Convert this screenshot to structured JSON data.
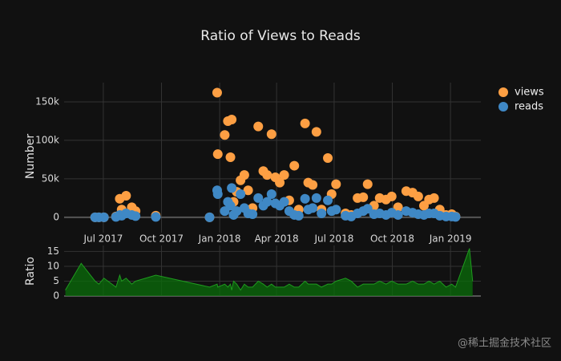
{
  "chart_data": [
    {
      "type": "scatter",
      "title": "Ratio of Views to Reads",
      "ylabel": "Number",
      "x": [
        "2017-05-02",
        "2017-05-27",
        "2017-06-18",
        "2017-06-24",
        "2017-07-02",
        "2017-07-21",
        "2017-07-27",
        "2017-07-30",
        "2017-08-06",
        "2017-08-15",
        "2017-08-21",
        "2017-09-22",
        "2017-12-16",
        "2017-12-28",
        "2017-12-29",
        "2018-01-09",
        "2018-01-14",
        "2018-01-18",
        "2018-01-20",
        "2018-01-23",
        "2018-01-28",
        "2018-02-03",
        "2018-02-09",
        "2018-02-15",
        "2018-02-22",
        "2018-03-03",
        "2018-03-11",
        "2018-03-17",
        "2018-03-24",
        "2018-03-30",
        "2018-04-06",
        "2018-04-13",
        "2018-04-21",
        "2018-04-29",
        "2018-05-06",
        "2018-05-16",
        "2018-05-21",
        "2018-05-28",
        "2018-06-03",
        "2018-06-11",
        "2018-06-21",
        "2018-06-27",
        "2018-07-04",
        "2018-07-19",
        "2018-07-28",
        "2018-08-07",
        "2018-08-16",
        "2018-08-23",
        "2018-09-02",
        "2018-09-11",
        "2018-09-21",
        "2018-09-30",
        "2018-10-10",
        "2018-10-23",
        "2018-11-02",
        "2018-11-11",
        "2018-11-20",
        "2018-11-28",
        "2018-12-06",
        "2018-12-15",
        "2018-12-25",
        "2019-01-03",
        "2019-01-09",
        "2019-01-31",
        "2019-02-05"
      ],
      "series": [
        {
          "name": "views",
          "color": "#fd9f43",
          "values": [
            null,
            null,
            0,
            0,
            0,
            1000,
            24000,
            10000,
            28000,
            13000,
            8000,
            2000,
            0,
            162000,
            82000,
            107000,
            125000,
            78000,
            127000,
            20000,
            33000,
            48000,
            55000,
            35000,
            12000,
            118000,
            60000,
            55000,
            108000,
            52000,
            45000,
            55000,
            22000,
            67000,
            10000,
            122000,
            45000,
            42000,
            111000,
            10000,
            77000,
            30000,
            43000,
            5000,
            3000,
            25000,
            26000,
            43000,
            15000,
            25000,
            23000,
            27000,
            13000,
            34000,
            32000,
            27000,
            15000,
            23000,
            25000,
            10000,
            3000,
            4000,
            1000,
            null,
            null
          ]
        },
        {
          "name": "reads",
          "color": "#3f88c5",
          "values": [
            null,
            null,
            0,
            0,
            0,
            500,
            3000,
            2000,
            5000,
            3000,
            1500,
            500,
            0,
            35000,
            30000,
            8000,
            20000,
            15000,
            38000,
            3000,
            8000,
            30000,
            12000,
            5000,
            4000,
            25000,
            15000,
            20000,
            30000,
            18000,
            15000,
            20000,
            8000,
            3000,
            2000,
            24000,
            10000,
            12000,
            25000,
            5000,
            22000,
            8000,
            10000,
            2000,
            1000,
            5000,
            8000,
            11000,
            4000,
            5000,
            3000,
            6000,
            3000,
            8000,
            6000,
            4000,
            3000,
            5000,
            5000,
            2000,
            1000,
            1000,
            500,
            null,
            null
          ]
        }
      ],
      "xlim": [
        "2017-04-30",
        "2019-02-18"
      ],
      "xticks": [
        {
          "value": "2017-07-01",
          "label": "Jul 2017"
        },
        {
          "value": "2017-10-01",
          "label": "Oct 2017"
        },
        {
          "value": "2018-01-01",
          "label": "Jan 2018"
        },
        {
          "value": "2018-04-01",
          "label": "Apr 2018"
        },
        {
          "value": "2018-07-01",
          "label": "Jul 2018"
        },
        {
          "value": "2018-10-01",
          "label": "Oct 2018"
        },
        {
          "value": "2019-01-01",
          "label": "Jan 2019"
        }
      ],
      "ylim": [
        -20000,
        175000
      ],
      "yticks": [
        0,
        {
          "value": 50000,
          "label": "50k"
        },
        {
          "value": 100000,
          "label": "100k"
        },
        {
          "value": 150000,
          "label": "150k"
        }
      ],
      "grid": true,
      "legend": "right"
    },
    {
      "type": "area",
      "ylabel": "Ratio",
      "color": "#1f9a1f",
      "x": [
        "2017-05-02",
        "2017-05-27",
        "2017-06-18",
        "2017-06-24",
        "2017-07-02",
        "2017-07-21",
        "2017-07-27",
        "2017-07-30",
        "2017-08-06",
        "2017-08-15",
        "2017-08-21",
        "2017-09-22",
        "2017-12-16",
        "2017-12-28",
        "2017-12-29",
        "2018-01-09",
        "2018-01-14",
        "2018-01-18",
        "2018-01-20",
        "2018-01-23",
        "2018-01-28",
        "2018-02-03",
        "2018-02-09",
        "2018-02-15",
        "2018-02-22",
        "2018-03-03",
        "2018-03-11",
        "2018-03-17",
        "2018-03-24",
        "2018-03-30",
        "2018-04-06",
        "2018-04-13",
        "2018-04-21",
        "2018-04-29",
        "2018-05-06",
        "2018-05-16",
        "2018-05-21",
        "2018-05-28",
        "2018-06-03",
        "2018-06-11",
        "2018-06-21",
        "2018-06-27",
        "2018-07-04",
        "2018-07-19",
        "2018-07-28",
        "2018-08-07",
        "2018-08-16",
        "2018-08-23",
        "2018-09-02",
        "2018-09-11",
        "2018-09-21",
        "2018-09-30",
        "2018-10-10",
        "2018-10-23",
        "2018-11-02",
        "2018-11-11",
        "2018-11-20",
        "2018-11-28",
        "2018-12-06",
        "2018-12-15",
        "2018-12-25",
        "2019-01-03",
        "2019-01-09",
        "2019-01-31",
        "2019-02-05"
      ],
      "values": [
        2,
        11,
        5,
        4,
        6,
        3,
        7,
        5,
        6,
        4,
        5,
        7,
        3,
        4,
        3,
        4,
        3,
        4,
        2,
        5,
        4,
        2,
        4,
        3,
        3,
        5,
        4,
        3,
        4,
        3,
        3,
        3,
        4,
        3,
        3,
        5,
        4,
        4,
        4,
        3,
        4,
        4,
        5,
        6,
        5,
        3,
        4,
        4,
        4,
        5,
        4,
        5,
        4,
        4,
        5,
        4,
        4,
        5,
        4,
        5,
        3,
        4,
        3,
        16,
        5
      ],
      "xlim": [
        "2017-04-30",
        "2019-02-18"
      ],
      "xticks": [
        "2017-07-01",
        "2017-10-01",
        "2018-01-01",
        "2018-04-01",
        "2018-07-01",
        "2018-10-01",
        "2019-01-01"
      ],
      "ylim": [
        0,
        17
      ],
      "yticks": [
        0,
        5,
        10,
        15
      ],
      "grid": true
    },
    {
      "type": "text",
      "watermark": "@稀土掘金技术社区"
    }
  ]
}
